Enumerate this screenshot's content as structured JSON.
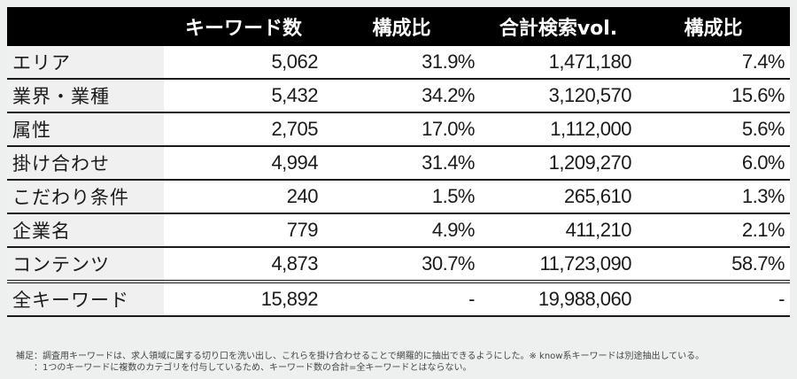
{
  "table": {
    "headers": [
      "",
      "キーワード数",
      "構成比",
      "合計検索vol.",
      "構成比"
    ],
    "rows": [
      {
        "label": "エリア",
        "keywords": "5,062",
        "kw_ratio": "31.9%",
        "volume": "1,471,180",
        "vol_ratio": "7.4%"
      },
      {
        "label": "業界・業種",
        "keywords": "5,432",
        "kw_ratio": "34.2%",
        "volume": "3,120,570",
        "vol_ratio": "15.6%"
      },
      {
        "label": "属性",
        "keywords": "2,705",
        "kw_ratio": "17.0%",
        "volume": "1,112,000",
        "vol_ratio": "5.6%"
      },
      {
        "label": "掛け合わせ",
        "keywords": "4,994",
        "kw_ratio": "31.4%",
        "volume": "1,209,270",
        "vol_ratio": "6.0%"
      },
      {
        "label": "こだわり条件",
        "keywords": "240",
        "kw_ratio": "1.5%",
        "volume": "265,610",
        "vol_ratio": "1.3%"
      },
      {
        "label": "企業名",
        "keywords": "779",
        "kw_ratio": "4.9%",
        "volume": "411,210",
        "vol_ratio": "2.1%"
      },
      {
        "label": "コンテンツ",
        "keywords": "4,873",
        "kw_ratio": "30.7%",
        "volume": "11,723,090",
        "vol_ratio": "58.7%"
      }
    ],
    "total": {
      "label": "全キーワード",
      "keywords": "15,892",
      "kw_ratio": "-",
      "volume": "19,988,060",
      "vol_ratio": "-"
    }
  },
  "notes": {
    "line1": "補足：調査用キーワードは、求人領域に属する切り口を洗い出し、これらを掛け合わせることで網羅的に抽出できるようにした。※ know系キーワードは別途抽出している。",
    "line2": "：1つのキーワードに複数のカテゴリを付与しているため、キーワード数の合計=全キーワードとはならない。"
  }
}
